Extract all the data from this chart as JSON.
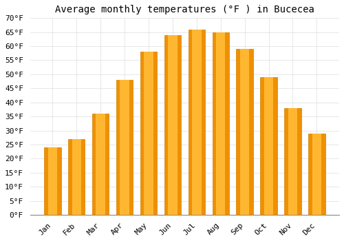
{
  "title": "Average monthly temperatures (°F ) in Bucecea",
  "months": [
    "Jan",
    "Feb",
    "Mar",
    "Apr",
    "May",
    "Jun",
    "Jul",
    "Aug",
    "Sep",
    "Oct",
    "Nov",
    "Dec"
  ],
  "values": [
    24,
    27,
    36,
    48,
    58,
    64,
    66,
    65,
    59,
    49,
    38,
    29
  ],
  "bar_color_light": "#FFB732",
  "bar_color_dark": "#F09000",
  "bar_edge_color": "#D08000",
  "ylim": [
    0,
    70
  ],
  "yticks": [
    0,
    5,
    10,
    15,
    20,
    25,
    30,
    35,
    40,
    45,
    50,
    55,
    60,
    65,
    70
  ],
  "ylabel_suffix": "°F",
  "background_color": "#ffffff",
  "grid_color": "#dddddd",
  "title_fontsize": 10,
  "tick_fontsize": 8
}
